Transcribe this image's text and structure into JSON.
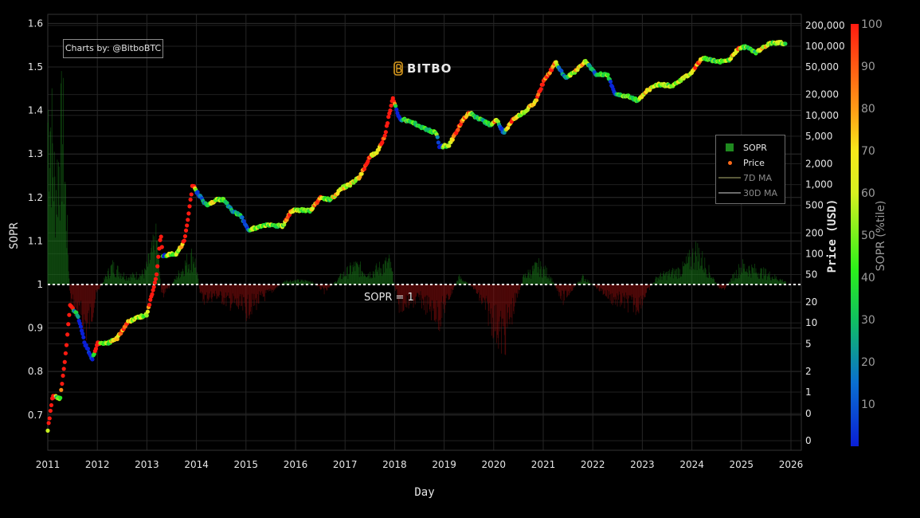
{
  "credit": "Charts by: @BitboBTC",
  "brand": {
    "name": "BITBO",
    "logo_icon": "bitcoin-b-icon",
    "color": "#d99a1e"
  },
  "annotation": "SOPR = 1",
  "axes": {
    "x_title": "Day",
    "y_left_title": "SOPR",
    "y_right_title": "Price (USD)",
    "colorbar_title": "SOPR (%tile)"
  },
  "legend": {
    "items": [
      {
        "label": "SOPR",
        "symbol": "green-square",
        "color": "#1f8a1f"
      },
      {
        "label": "Price",
        "symbol": "orange-dot",
        "color": "#ff6a1a"
      },
      {
        "label": "7D MA",
        "symbol": "line",
        "color": "#5a5a3a"
      },
      {
        "label": "30D MA",
        "symbol": "line",
        "color": "#6a6a6a"
      }
    ]
  },
  "chart_data": {
    "type": "scatter",
    "title": "",
    "xlabel": "Day",
    "ylabel": "SOPR",
    "y2label": "Price (USD)",
    "y2scale": "log",
    "x_ticks": [
      "2011",
      "2012",
      "2013",
      "2014",
      "2015",
      "2016",
      "2017",
      "2018",
      "2019",
      "2020",
      "2021",
      "2022",
      "2023",
      "2024",
      "2025",
      "2026"
    ],
    "y_ticks": [
      "0.7",
      "0.8",
      "0.9",
      "1",
      "1.1",
      "1.2",
      "1.3",
      "1.4",
      "1.5",
      "1.6"
    ],
    "y2_ticks": [
      {
        "label": "0",
        "value": 0
      },
      {
        "label": "0",
        "value": 0.5
      },
      {
        "label": "1",
        "value": 1
      },
      {
        "label": "2",
        "value": 2
      },
      {
        "label": "5",
        "value": 5
      },
      {
        "label": "10",
        "value": 10
      },
      {
        "label": "20",
        "value": 20
      },
      {
        "label": "50",
        "value": 50
      },
      {
        "label": "100",
        "value": 100
      },
      {
        "label": "200",
        "value": 200
      },
      {
        "label": "500",
        "value": 500
      },
      {
        "label": "1,000",
        "value": 1000
      },
      {
        "label": "2,000",
        "value": 2000
      },
      {
        "label": "5,000",
        "value": 5000
      },
      {
        "label": "10,000",
        "value": 10000
      },
      {
        "label": "20,000",
        "value": 20000
      },
      {
        "label": "50,000",
        "value": 50000
      },
      {
        "label": "100,000",
        "value": 100000
      },
      {
        "label": "200,000",
        "value": 200000
      }
    ],
    "colorbar_ticks": [
      "10",
      "20",
      "30",
      "40",
      "50",
      "60",
      "70",
      "80",
      "90",
      "100"
    ],
    "colorbar_range": [
      0,
      100
    ],
    "ylim": [
      0.645,
      1.615
    ],
    "xlim": [
      2011.0,
      2026.2
    ],
    "reference_line": {
      "y": 1,
      "label": "SOPR = 1"
    },
    "series": [
      {
        "name": "Price",
        "unit": "USD",
        "points": [
          [
            2011.0,
            0.3
          ],
          [
            2011.1,
            0.9
          ],
          [
            2011.25,
            0.8
          ],
          [
            2011.35,
            3.0
          ],
          [
            2011.45,
            18
          ],
          [
            2011.6,
            13
          ],
          [
            2011.75,
            5
          ],
          [
            2011.9,
            3
          ],
          [
            2012.0,
            5
          ],
          [
            2012.2,
            5
          ],
          [
            2012.4,
            6
          ],
          [
            2012.6,
            10
          ],
          [
            2012.8,
            12
          ],
          [
            2013.0,
            13
          ],
          [
            2013.2,
            50
          ],
          [
            2013.28,
            200
          ],
          [
            2013.32,
            90
          ],
          [
            2013.45,
            100
          ],
          [
            2013.6,
            100
          ],
          [
            2013.75,
            150
          ],
          [
            2013.85,
            400
          ],
          [
            2013.92,
            1000
          ],
          [
            2014.0,
            800
          ],
          [
            2014.2,
            500
          ],
          [
            2014.4,
            600
          ],
          [
            2014.55,
            600
          ],
          [
            2014.75,
            400
          ],
          [
            2014.9,
            350
          ],
          [
            2015.05,
            220
          ],
          [
            2015.3,
            250
          ],
          [
            2015.5,
            260
          ],
          [
            2015.75,
            250
          ],
          [
            2015.9,
            400
          ],
          [
            2016.0,
            430
          ],
          [
            2016.3,
            420
          ],
          [
            2016.5,
            650
          ],
          [
            2016.7,
            600
          ],
          [
            2016.95,
            900
          ],
          [
            2017.1,
            1000
          ],
          [
            2017.3,
            1300
          ],
          [
            2017.5,
            2500
          ],
          [
            2017.65,
            3000
          ],
          [
            2017.8,
            5000
          ],
          [
            2017.96,
            18000
          ],
          [
            2018.1,
            9000
          ],
          [
            2018.35,
            8000
          ],
          [
            2018.6,
            6500
          ],
          [
            2018.85,
            5500
          ],
          [
            2018.9,
            3500
          ],
          [
            2019.1,
            3700
          ],
          [
            2019.35,
            8000
          ],
          [
            2019.5,
            11000
          ],
          [
            2019.7,
            9000
          ],
          [
            2019.95,
            7200
          ],
          [
            2020.05,
            9000
          ],
          [
            2020.2,
            5500
          ],
          [
            2020.4,
            9000
          ],
          [
            2020.6,
            11000
          ],
          [
            2020.85,
            16000
          ],
          [
            2021.0,
            30000
          ],
          [
            2021.25,
            58000
          ],
          [
            2021.45,
            35000
          ],
          [
            2021.6,
            40000
          ],
          [
            2021.85,
            62000
          ],
          [
            2022.05,
            40000
          ],
          [
            2022.3,
            38000
          ],
          [
            2022.45,
            20000
          ],
          [
            2022.7,
            19000
          ],
          [
            2022.9,
            16500
          ],
          [
            2023.1,
            23000
          ],
          [
            2023.3,
            28000
          ],
          [
            2023.6,
            27000
          ],
          [
            2023.85,
            35000
          ],
          [
            2024.0,
            42000
          ],
          [
            2024.2,
            68000
          ],
          [
            2024.5,
            60000
          ],
          [
            2024.75,
            62000
          ],
          [
            2024.95,
            95000
          ],
          [
            2025.1,
            98000
          ],
          [
            2025.3,
            80000
          ],
          [
            2025.55,
            108000
          ],
          [
            2025.8,
            114000
          ],
          [
            2025.9,
            104000
          ]
        ]
      },
      {
        "name": "SOPR",
        "unit": "ratio",
        "note": "green bars above 1, red bars below 1",
        "points": [
          [
            2011.05,
            1.47
          ],
          [
            2011.15,
            1.25
          ],
          [
            2011.3,
            1.43
          ],
          [
            2011.45,
            0.96
          ],
          [
            2011.6,
            0.92
          ],
          [
            2011.8,
            0.88
          ],
          [
            2012.0,
            0.98
          ],
          [
            2012.3,
            1.05
          ],
          [
            2012.6,
            1.02
          ],
          [
            2012.95,
            1.03
          ],
          [
            2013.2,
            1.12
          ],
          [
            2013.3,
            0.97
          ],
          [
            2013.5,
            1.0
          ],
          [
            2013.8,
            1.06
          ],
          [
            2013.95,
            1.08
          ],
          [
            2014.1,
            0.96
          ],
          [
            2014.4,
            0.97
          ],
          [
            2014.7,
            0.95
          ],
          [
            2015.0,
            0.93
          ],
          [
            2015.4,
            0.97
          ],
          [
            2015.8,
            1.01
          ],
          [
            2016.3,
            1.01
          ],
          [
            2016.6,
            0.98
          ],
          [
            2016.9,
            1.02
          ],
          [
            2017.2,
            1.05
          ],
          [
            2017.5,
            1.03
          ],
          [
            2017.9,
            1.06
          ],
          [
            2018.1,
            0.94
          ],
          [
            2018.5,
            0.96
          ],
          [
            2018.9,
            0.91
          ],
          [
            2019.3,
            1.02
          ],
          [
            2019.6,
            0.99
          ],
          [
            2020.2,
            0.85
          ],
          [
            2020.6,
            1.02
          ],
          [
            2020.9,
            1.05
          ],
          [
            2021.1,
            1.03
          ],
          [
            2021.4,
            0.96
          ],
          [
            2021.8,
            1.02
          ],
          [
            2022.4,
            0.96
          ],
          [
            2022.9,
            0.94
          ],
          [
            2023.3,
            1.02
          ],
          [
            2023.8,
            1.04
          ],
          [
            2024.1,
            1.09
          ],
          [
            2024.6,
            0.98
          ],
          [
            2025.0,
            1.05
          ],
          [
            2025.5,
            1.03
          ],
          [
            2025.85,
            1.01
          ]
        ]
      }
    ]
  }
}
